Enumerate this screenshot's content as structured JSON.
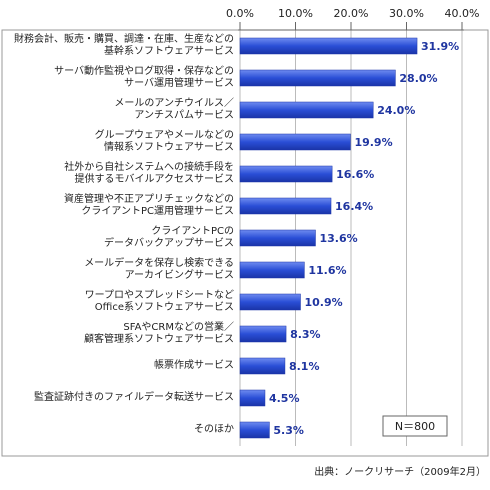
{
  "chart_data": {
    "type": "bar",
    "orientation": "horizontal",
    "categories": [
      "財務会計、販売・購買、調達・在庫、生産などの\n基幹系ソフトウェアサービス",
      "サーバ動作監視やログ取得・保存などの\nサーバ運用管理サービス",
      "メールのアンチウイルス／\nアンチスパムサービス",
      "グループウェアやメールなどの\n情報系ソフトウェアサービス",
      "社外から自社システムへの接続手段を\n提供するモバイルアクセスサービス",
      "資産管理や不正アプリチェックなどの\nクライアントPC運用管理サービス",
      "クライアントPCの\nデータバックアップサービス",
      "メールデータを保存し検索できる\nアーカイビングサービス",
      "ワープロやスプレッドシートなど\nOffice系ソフトウェアサービス",
      "SFAやCRMなどの営業／\n顧客管理系ソフトウェアサービス",
      "帳票作成サービス",
      "監査証跡付きのファイルデータ転送サービス",
      "そのほか"
    ],
    "values": [
      31.9,
      28.0,
      24.0,
      19.9,
      16.6,
      16.4,
      13.6,
      11.6,
      10.9,
      8.3,
      8.1,
      4.5,
      5.3
    ],
    "value_labels": [
      "31.9%",
      "28.0%",
      "24.0%",
      "19.9%",
      "16.6%",
      "16.4%",
      "13.6%",
      "11.6%",
      "10.9%",
      "8.3%",
      "8.1%",
      "4.5%",
      "5.3%"
    ],
    "color": "#2a4ed6",
    "xlim": [
      0,
      40
    ],
    "xticks": [
      {
        "value": 0,
        "label": "0.0%"
      },
      {
        "value": 10,
        "label": "10.0%"
      },
      {
        "value": 20,
        "label": "20.0%"
      },
      {
        "value": 30,
        "label": "30.0%"
      },
      {
        "value": 40,
        "label": "40.0%"
      }
    ],
    "grid": true,
    "annotation": "N＝800",
    "source": "出典：ノークリサーチ（2009年2月）"
  }
}
